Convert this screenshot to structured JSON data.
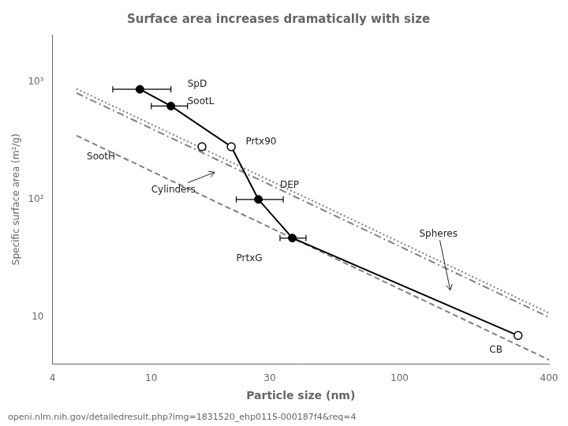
{
  "chart_data": {
    "type": "scatter",
    "title": "Surface area increases dramatically with size",
    "xlabel": "Particle size (nm)",
    "ylabel": "Specific surface area (m²/g)",
    "footer": "openi.nlm.nih.gov/detailedresult.php?img=1831520_ehp0115-000187f4&req=4",
    "log": true,
    "grid": false,
    "xlim": [
      4,
      400
    ],
    "ylim": [
      4,
      2500
    ],
    "xticks": [
      4,
      10,
      30,
      100,
      400
    ],
    "yticks": [
      10,
      {
        "value": 100,
        "label": "10²"
      },
      {
        "value": 1000,
        "label": "10³"
      }
    ],
    "series": [
      {
        "type": "line",
        "color": "gray",
        "line_style": "dashed",
        "x": [
          5,
          400
        ],
        "values": [
          347.8,
          4.3475
        ]
      },
      {
        "type": "line",
        "color": "gray",
        "line_style": "dashdot",
        "x": [
          5,
          400
        ],
        "values": [
          800,
          10
        ]
      },
      {
        "type": "line",
        "color": "gray",
        "line_style": "dotted",
        "x": [
          5,
          400
        ],
        "values": [
          869.5,
          10.86875
        ]
      },
      {
        "type": "line",
        "color": "black",
        "line_style": "solid",
        "x": [
          9,
          12,
          21,
          27,
          37,
          300
        ],
        "values": [
          860,
          620,
          280,
          100,
          47,
          7
        ]
      },
      {
        "type": "scatter",
        "color": "black",
        "marker": "filled_circle",
        "x": [
          9,
          12,
          27,
          37
        ],
        "values": [
          860,
          620,
          100,
          47
        ],
        "xerr_minus": [
          2,
          2,
          5,
          4
        ],
        "xerr_plus": [
          3,
          2,
          7,
          5
        ]
      },
      {
        "type": "scatter",
        "color": "black",
        "marker": "open_circle",
        "x": [
          16,
          21,
          300
        ],
        "values": [
          280,
          280,
          7
        ]
      }
    ],
    "annotations": [
      {
        "text": "SpD",
        "x": 14,
        "y": 900
      },
      {
        "text": "SootL",
        "x": 14,
        "y": 640
      },
      {
        "text": "DEP",
        "x": 33,
        "y": 125
      },
      {
        "text": "PrtxG",
        "x": 22,
        "y": 30
      },
      {
        "text": "SootH",
        "x": 5.5,
        "y": 220
      },
      {
        "text": "Prtx90",
        "x": 24,
        "y": 295
      },
      {
        "text": "CB",
        "x": 230,
        "y": 5
      },
      {
        "text": "Cylinders",
        "x": 10,
        "y": 115,
        "arrow_to": [
          18,
          170
        ]
      },
      {
        "text": "Spheres",
        "x": 120,
        "y": 48,
        "arrow_to": [
          160,
          17
        ]
      }
    ]
  }
}
